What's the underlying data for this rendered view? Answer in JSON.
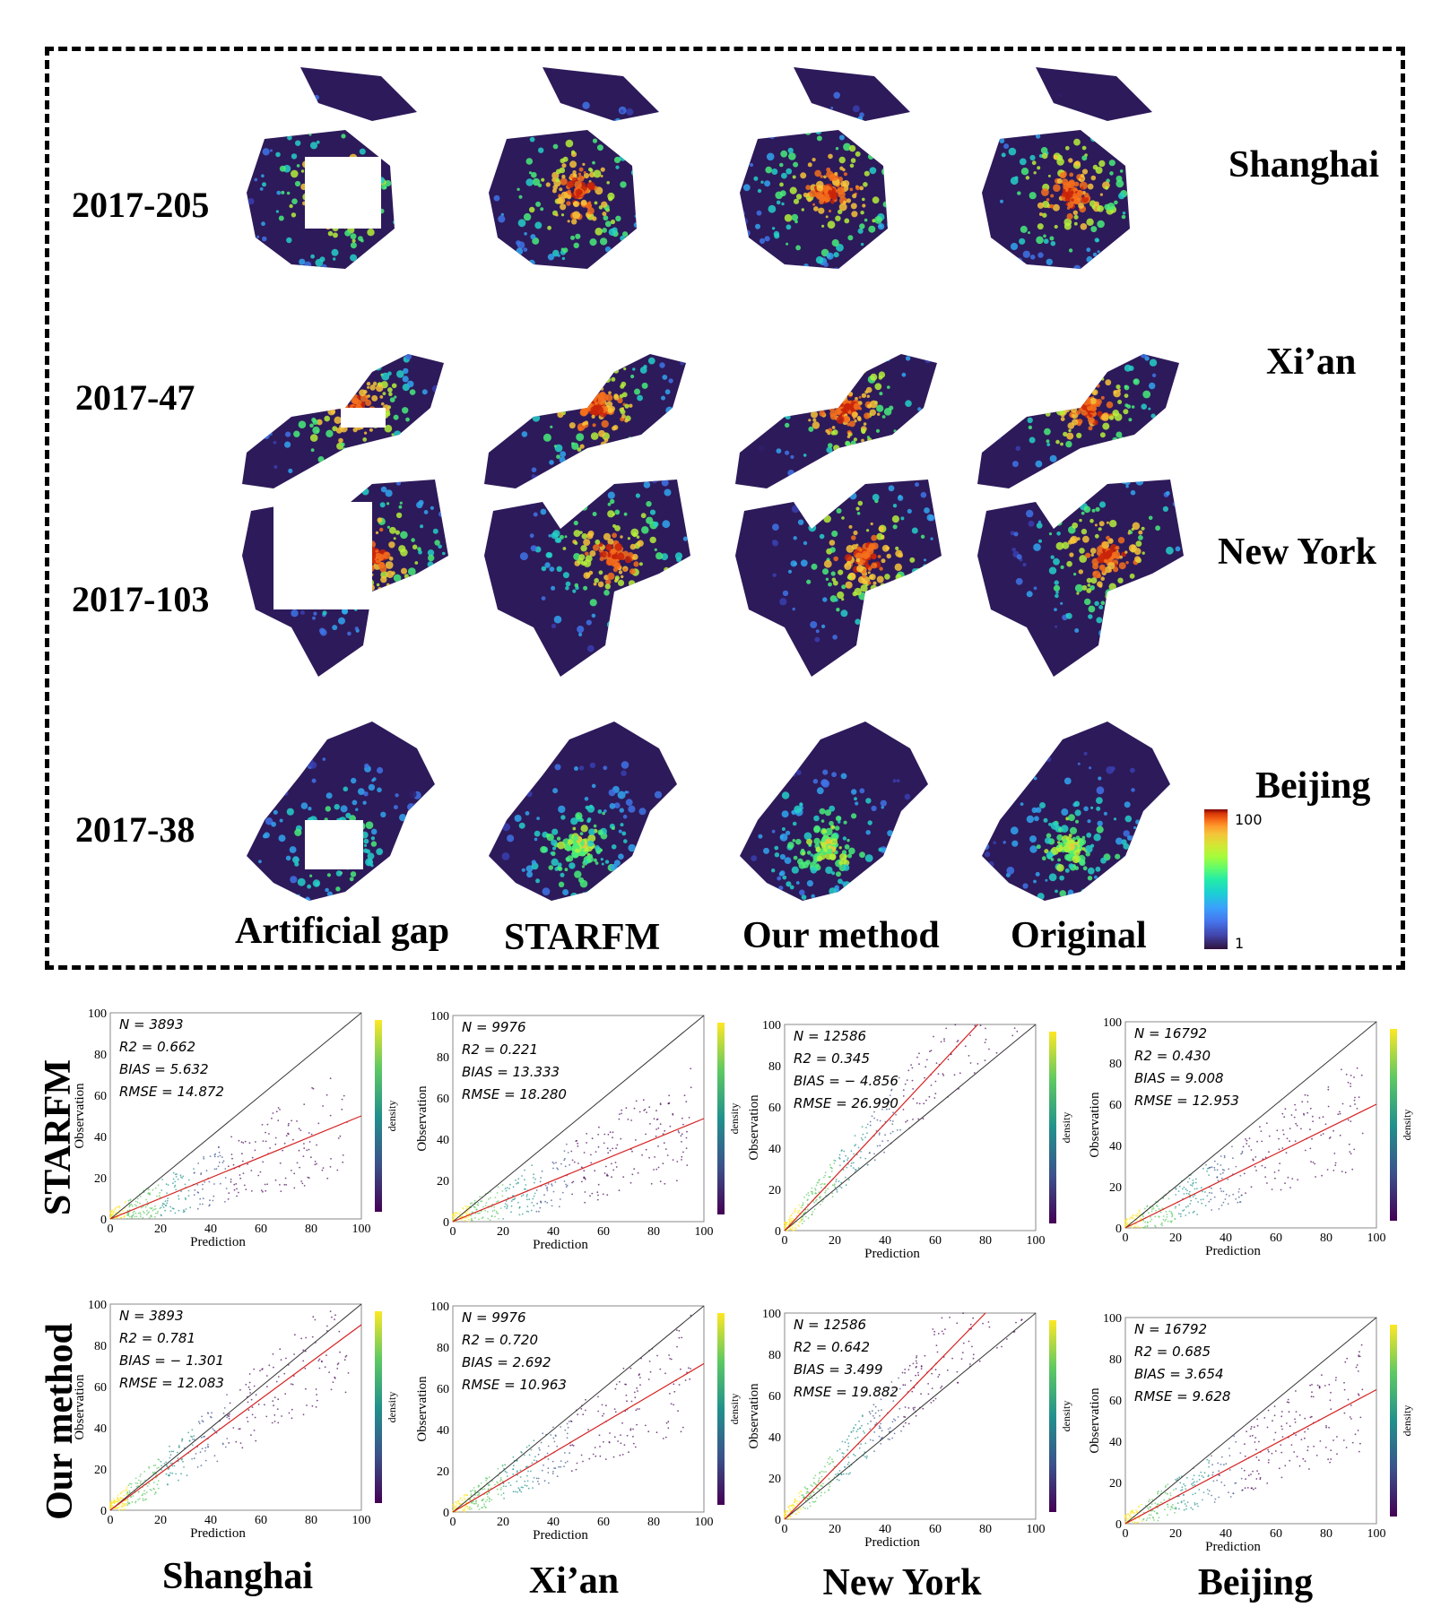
{
  "top_figure": {
    "rows": [
      {
        "date": "2017-205",
        "city": "Shanghai"
      },
      {
        "date": "2017-47",
        "city": "Xi’an"
      },
      {
        "date": "2017-103",
        "city": "New York"
      },
      {
        "date": "2017-38",
        "city": "Beijing"
      }
    ],
    "columns": [
      "Artificial gap",
      "STARFM",
      "Our method",
      "Original"
    ],
    "colorbar": {
      "max_label": "100",
      "min_label": "1"
    }
  },
  "bottom_figure": {
    "row_labels": [
      "STARFM",
      "Our method"
    ],
    "column_labels": [
      "Shanghai",
      "Xi’an",
      "New York",
      "Beijing"
    ]
  },
  "chart_data": [
    {
      "type": "scatter",
      "method": "STARFM",
      "city": "Shanghai",
      "xlabel": "Prediction",
      "ylabel": "Observation",
      "colorbar_label": "density",
      "xlim": [
        0,
        100
      ],
      "ylim": [
        0,
        100
      ],
      "ticks": [
        0,
        20,
        40,
        60,
        80,
        100
      ],
      "N": "N = 3893",
      "R2": "R2 = 0.662",
      "BIAS": "BIAS = 5.632",
      "RMSE": "RMSE = 14.872",
      "fit_slope": 0.5
    },
    {
      "type": "scatter",
      "method": "STARFM",
      "city": "Xi’an",
      "xlabel": "Prediction",
      "ylabel": "Observation",
      "colorbar_label": "density",
      "xlim": [
        0,
        100
      ],
      "ylim": [
        0,
        100
      ],
      "ticks": [
        0,
        20,
        40,
        60,
        80,
        100
      ],
      "N": "N = 9976",
      "R2": "R2 = 0.221",
      "BIAS": "BIAS = 13.333",
      "RMSE": "RMSE = 18.280",
      "fit_slope": 0.5
    },
    {
      "type": "scatter",
      "method": "STARFM",
      "city": "New York",
      "xlabel": "Prediction",
      "ylabel": "Observation",
      "colorbar_label": "density",
      "xlim": [
        0,
        100
      ],
      "ylim": [
        0,
        100
      ],
      "ticks": [
        0,
        20,
        40,
        60,
        80,
        100
      ],
      "N": "N = 12586",
      "R2": "R2 = 0.345",
      "BIAS": "BIAS = − 4.856",
      "RMSE": "RMSE = 26.990",
      "fit_slope": 1.3
    },
    {
      "type": "scatter",
      "method": "STARFM",
      "city": "Beijing",
      "xlabel": "Prediction",
      "ylabel": "Observation",
      "colorbar_label": "density",
      "xlim": [
        0,
        100
      ],
      "ylim": [
        0,
        100
      ],
      "ticks": [
        0,
        20,
        40,
        60,
        80,
        100
      ],
      "N": "N = 16792",
      "R2": "R2 = 0.430",
      "BIAS": "BIAS = 9.008",
      "RMSE": "RMSE = 12.953",
      "fit_slope": 0.6
    },
    {
      "type": "scatter",
      "method": "Our method",
      "city": "Shanghai",
      "xlabel": "Prediction",
      "ylabel": "Observation",
      "colorbar_label": "density",
      "xlim": [
        0,
        100
      ],
      "ylim": [
        0,
        100
      ],
      "ticks": [
        0,
        20,
        40,
        60,
        80,
        100
      ],
      "N": "N = 3893",
      "R2": "R2 = 0.781",
      "BIAS": "BIAS = − 1.301",
      "RMSE": "RMSE = 12.083",
      "fit_slope": 0.9
    },
    {
      "type": "scatter",
      "method": "Our method",
      "city": "Xi’an",
      "xlabel": "Prediction",
      "ylabel": "Observation",
      "colorbar_label": "density",
      "xlim": [
        0,
        100
      ],
      "ylim": [
        0,
        100
      ],
      "ticks": [
        0,
        20,
        40,
        60,
        80,
        100
      ],
      "N": "N = 9976",
      "R2": "R2 = 0.720",
      "BIAS": "BIAS = 2.692",
      "RMSE": "RMSE = 10.963",
      "fit_slope": 0.72
    },
    {
      "type": "scatter",
      "method": "Our method",
      "city": "New York",
      "xlabel": "Prediction",
      "ylabel": "Observation",
      "colorbar_label": "density",
      "xlim": [
        0,
        100
      ],
      "ylim": [
        0,
        100
      ],
      "ticks": [
        0,
        20,
        40,
        60,
        80,
        100
      ],
      "N": "N = 12586",
      "R2": "R2 = 0.642",
      "BIAS": "BIAS = 3.499",
      "RMSE": "RMSE = 19.882",
      "fit_slope": 1.25
    },
    {
      "type": "scatter",
      "method": "Our method",
      "city": "Beijing",
      "xlabel": "Prediction",
      "ylabel": "Observation",
      "colorbar_label": "density",
      "xlim": [
        0,
        100
      ],
      "ylim": [
        0,
        100
      ],
      "ticks": [
        0,
        20,
        40,
        60,
        80,
        100
      ],
      "N": "N = 16792",
      "R2": "R2 = 0.685",
      "BIAS": "BIAS = 3.654",
      "RMSE": "RMSE = 9.628",
      "fit_slope": 0.65
    }
  ]
}
